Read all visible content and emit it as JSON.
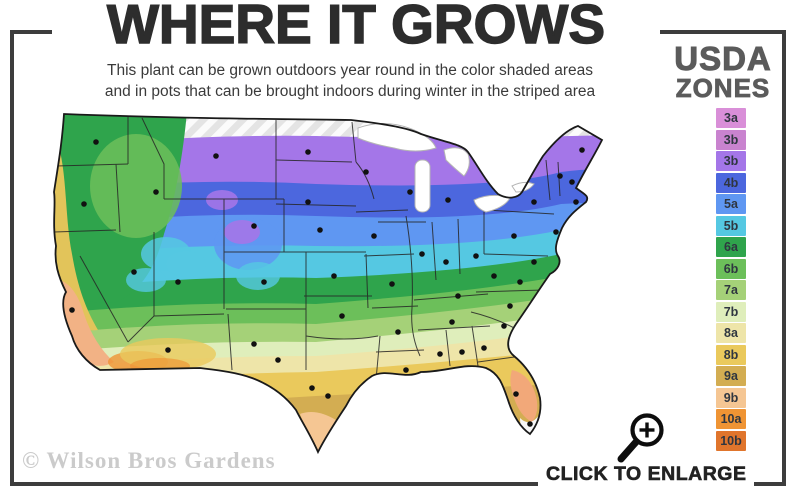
{
  "title": "WHERE IT GROWS",
  "subtitle": {
    "line1": "This plant can be grown outdoors year round in the color shaded areas",
    "line2": "and in pots that can be brought indoors during winter in the striped area"
  },
  "legend": {
    "heading_line1": "USDA",
    "heading_line2": "ZONES",
    "zones": [
      {
        "label": "3a",
        "color": "#d98fd8"
      },
      {
        "label": "3b",
        "color": "#c983cf"
      },
      {
        "label": "3b",
        "color": "#a476e8"
      },
      {
        "label": "4b",
        "color": "#4c67de"
      },
      {
        "label": "5a",
        "color": "#5f97f2"
      },
      {
        "label": "5b",
        "color": "#55c8e2"
      },
      {
        "label": "6a",
        "color": "#2fa44c"
      },
      {
        "label": "6b",
        "color": "#6cbf5a"
      },
      {
        "label": "7a",
        "color": "#a5d178"
      },
      {
        "label": "7b",
        "color": "#dfeebb"
      },
      {
        "label": "8a",
        "color": "#eee5a9"
      },
      {
        "label": "8b",
        "color": "#eac95c"
      },
      {
        "label": "9a",
        "color": "#d3ad52"
      },
      {
        "label": "9b",
        "color": "#f5c693"
      },
      {
        "label": "10a",
        "color": "#ef9434"
      },
      {
        "label": "10b",
        "color": "#e0752c"
      }
    ]
  },
  "map": {
    "alt": "USDA plant hardiness zone map of the continental United States with color shaded growing zones, state outlines, city dots and a striped far-north zone"
  },
  "watermark": "© Wilson Bros Gardens",
  "enlarge": {
    "label": "CLICK TO ENLARGE",
    "icon": "magnifier-plus-icon"
  },
  "colors": {
    "frame": "#3d3d3d",
    "title_text": "#2d2d2d",
    "legend_heading": "#5b5b5b",
    "watermark_text": "#cbcbcb"
  }
}
